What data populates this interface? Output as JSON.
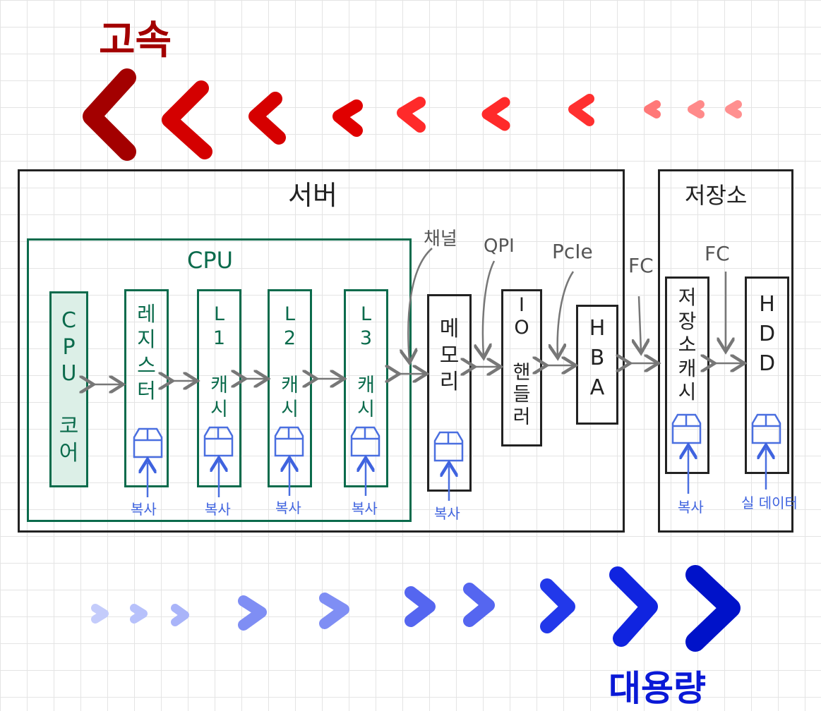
{
  "top": {
    "title": "고속",
    "title_color": "#a30000"
  },
  "bottom": {
    "title": "대용량",
    "title_color": "#0a19d6"
  },
  "server": {
    "title": "서버"
  },
  "storage": {
    "title": "저장소"
  },
  "cpu_group": {
    "title": "CPU"
  },
  "components": {
    "cpu_core": "C\nP\nU\n\n코\n어",
    "register": "레\n지\n스\n터",
    "l1": "L\n1\n\n캐\n시",
    "l2": "L\n2\n\n캐\n시",
    "l3": "L\n3\n\n캐\n시",
    "memory": "메\n모\n리",
    "io": "I\nO\n\n핸\n들\n러",
    "hba": "H\nB\nA",
    "storage_cache": "저\n장\n소\n캐\n시",
    "hdd": "H\nD\nD"
  },
  "connections": {
    "channel": "채널",
    "qpi": "QPI",
    "pcie": "PcIe",
    "fc1": "FC",
    "fc2": "FC"
  },
  "copy_labels": {
    "register": "복사",
    "l1": "복사",
    "l2": "복사",
    "l3": "복사",
    "memory": "복사",
    "storage_cache": "복사",
    "hdd": "실 데이터"
  },
  "colors": {
    "green": "#0b6b4c",
    "green_fill": "#dcefe7",
    "black": "#222222",
    "gray_arrow": "#777777",
    "blue_icon": "#4a6fe0"
  }
}
